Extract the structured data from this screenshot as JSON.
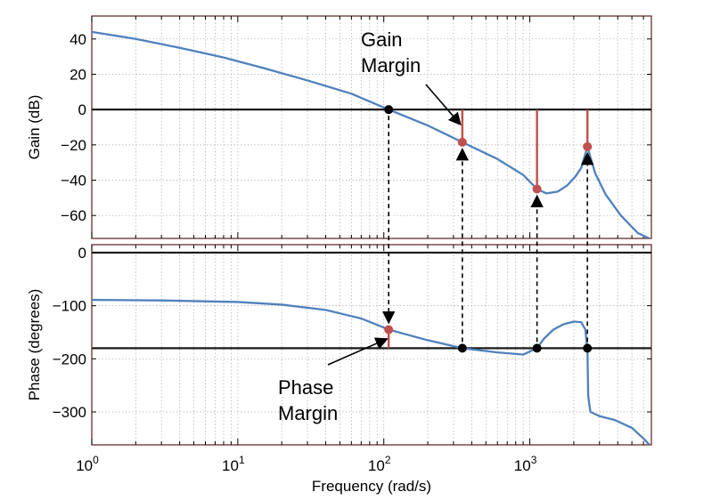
{
  "chart_data": [
    {
      "panel": "gain",
      "type": "line",
      "ylabel": "Gain (dB)",
      "xscale": "log",
      "xlim": [
        1,
        6800
      ],
      "ylim": [
        -73,
        53
      ],
      "yticks": [
        40,
        20,
        0,
        -20,
        -40,
        -60
      ],
      "ytick_labels": [
        "40",
        "20",
        "0",
        "−20",
        "−40",
        "−60"
      ],
      "grid": true,
      "reference_line": 0,
      "series": [
        {
          "color": "#4f81bd",
          "x": [
            1,
            2,
            4,
            8,
            15,
            30,
            60,
            108,
            200,
            345,
            600,
            900,
            1120,
            1300,
            1550,
            1800,
            2050,
            2250,
            2420,
            2480,
            2560,
            2800,
            3300,
            4200,
            5500,
            6600
          ],
          "y": [
            44,
            40,
            35,
            29.5,
            23.5,
            16.5,
            9,
            0,
            -9,
            -18.5,
            -28,
            -37,
            -45,
            -47.5,
            -46.5,
            -43,
            -38,
            -33,
            -24,
            -21,
            -25,
            -36,
            -48,
            -60,
            -70,
            -73
          ]
        }
      ],
      "markers": [
        {
          "x": 108,
          "y": 0,
          "color": "#000000"
        },
        {
          "x": 345,
          "y": -18.5,
          "color": "#c0504d"
        },
        {
          "x": 1120,
          "y": -45,
          "color": "#c0504d"
        },
        {
          "x": 2480,
          "y": -21,
          "color": "#c0504d"
        }
      ],
      "margin_bars": [
        {
          "x": 345,
          "y_from": 0,
          "y_to": -18.5
        },
        {
          "x": 1120,
          "y_from": 0,
          "y_to": -45
        },
        {
          "x": 2480,
          "y_from": 0,
          "y_to": -21
        }
      ],
      "annotation": {
        "lines": [
          "Gain",
          "Margin"
        ],
        "arrow_to": {
          "x": 345,
          "y": -10
        }
      }
    },
    {
      "panel": "phase",
      "type": "line",
      "xlabel": "Frequency (rad/s)",
      "ylabel": "Phase (degrees)",
      "xscale": "log",
      "xlim": [
        1,
        6800
      ],
      "ylim": [
        -362,
        15
      ],
      "yticks": [
        0,
        -100,
        -200,
        -300
      ],
      "ytick_labels": [
        "0",
        "−100",
        "−200",
        "−300"
      ],
      "xticks": [
        1,
        10,
        100,
        1000
      ],
      "xtick_labels": [
        {
          "base": "10",
          "exp": "0"
        },
        {
          "base": "10",
          "exp": "1"
        },
        {
          "base": "10",
          "exp": "2"
        },
        {
          "base": "10",
          "exp": "3"
        }
      ],
      "grid": true,
      "reference_lines": [
        0,
        -180
      ],
      "series": [
        {
          "color": "#4f81bd",
          "x": [
            1,
            3,
            10,
            20,
            40,
            70,
            108,
            200,
            345,
            600,
            900,
            1120,
            1250,
            1450,
            1700,
            2000,
            2250,
            2400,
            2460,
            2480,
            2510,
            2600,
            3000,
            3800,
            5000,
            6000,
            6600
          ],
          "y": [
            -89,
            -90,
            -93,
            -98,
            -108,
            -124,
            -145,
            -165,
            -180,
            -188,
            -192,
            -180,
            -162,
            -145,
            -135,
            -130,
            -131,
            -145,
            -175,
            -180,
            -270,
            -300,
            -308,
            -315,
            -330,
            -350,
            -362
          ]
        }
      ],
      "markers": [
        {
          "x": 108,
          "y": -145,
          "color": "#c0504d"
        },
        {
          "x": 345,
          "y": -180,
          "color": "#000000"
        },
        {
          "x": 1120,
          "y": -180,
          "color": "#000000"
        },
        {
          "x": 2480,
          "y": -180,
          "color": "#000000"
        }
      ],
      "margin_bars": [
        {
          "x": 108,
          "y_from": -180,
          "y_to": -145
        }
      ],
      "annotation": {
        "lines": [
          "Phase",
          "Margin"
        ],
        "arrow_to": {
          "x": 108,
          "y": -160
        }
      }
    }
  ],
  "links": [
    {
      "x": 108,
      "from": "gain",
      "from_y": 0,
      "to": "phase",
      "to_y": -145
    },
    {
      "x": 345,
      "from": "phase",
      "from_y": -180,
      "to": "gain",
      "to_y": -18.5
    },
    {
      "x": 1120,
      "from": "phase",
      "from_y": -180,
      "to": "gain",
      "to_y": -45
    },
    {
      "x": 2480,
      "from": "phase",
      "from_y": -180,
      "to": "gain",
      "to_y": -21
    }
  ]
}
